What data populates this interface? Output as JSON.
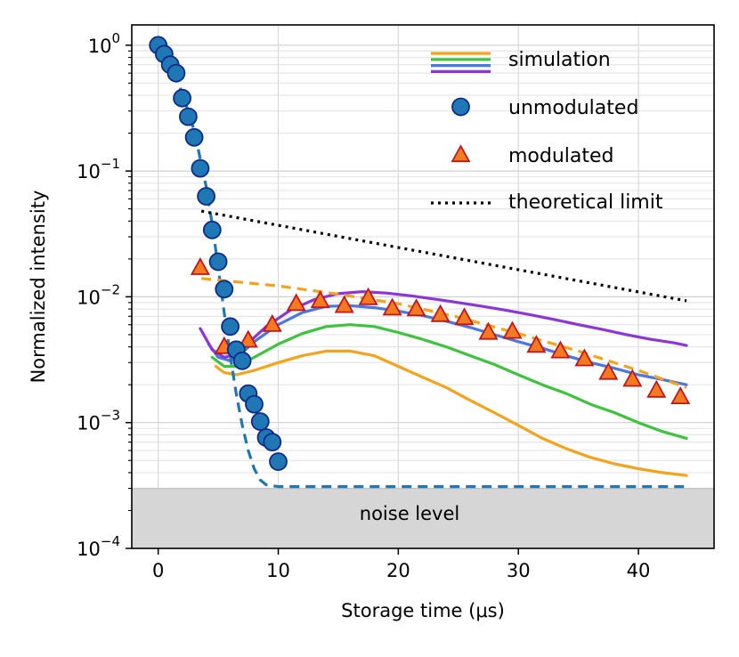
{
  "chart_data": {
    "type": "line",
    "title": "",
    "xlabel": "Storage time (μs)",
    "ylabel": "Normalized intensity",
    "xlim": [
      -2.2,
      46.3
    ],
    "ylim": [
      0.0001,
      1.45
    ],
    "yscale": "log",
    "grid": true,
    "legend_position": "top-right",
    "x_ticks": [
      {
        "value": 0,
        "label": "0"
      },
      {
        "value": 10,
        "label": "10"
      },
      {
        "value": 20,
        "label": "20"
      },
      {
        "value": 30,
        "label": "30"
      },
      {
        "value": 40,
        "label": "40"
      }
    ],
    "y_ticks": [
      {
        "value": 0.0001,
        "base": "10",
        "exp": "−4"
      },
      {
        "value": 0.001,
        "base": "10",
        "exp": "−3"
      },
      {
        "value": 0.01,
        "base": "10",
        "exp": "−2"
      },
      {
        "value": 0.1,
        "base": "10",
        "exp": "−1"
      },
      {
        "value": 1,
        "base": "10",
        "exp": "0"
      }
    ],
    "noise_level": {
      "value": 0.0003,
      "label": "noise level",
      "color": "#d6d6d6"
    },
    "legend": [
      {
        "kind": "simulation",
        "label": "simulation",
        "colors": [
          "#f5a31a",
          "#3cc43c",
          "#4a78e0",
          "#8c36d9"
        ]
      },
      {
        "kind": "unmodulated",
        "label": "unmodulated"
      },
      {
        "kind": "modulated",
        "label": "modulated"
      },
      {
        "kind": "limit",
        "label": "theoretical limit"
      }
    ],
    "series": [
      {
        "name": "unmodulated",
        "kind": "scatter",
        "color": "#1f77b4",
        "edge_color": "#0e2a8a",
        "x": [
          0,
          0.5,
          1.0,
          1.5,
          2.0,
          2.5,
          3.0,
          3.5,
          4.0,
          4.5,
          5.0,
          5.5,
          6.0,
          6.5,
          7.0,
          7.5,
          8.0,
          8.5,
          9.0,
          9.5,
          10.0
        ],
        "y": [
          1.0,
          0.85,
          0.7,
          0.6,
          0.38,
          0.27,
          0.185,
          0.105,
          0.063,
          0.034,
          0.019,
          0.0115,
          0.0058,
          0.0038,
          0.0031,
          0.0017,
          0.0014,
          0.00102,
          0.00076,
          0.0007,
          0.00049
        ]
      },
      {
        "name": "unmodulated fit",
        "kind": "dashed",
        "color": "#1f77b4",
        "x": [
          0,
          1,
          2,
          3,
          4,
          4.5,
          5,
          5.5,
          6,
          6.5,
          7,
          7.5,
          8,
          8.5,
          9,
          10,
          15,
          20,
          25,
          30,
          35,
          40,
          44
        ],
        "y": [
          1.0,
          0.68,
          0.42,
          0.21,
          0.075,
          0.038,
          0.017,
          0.0075,
          0.0034,
          0.0017,
          0.00095,
          0.0006,
          0.00043,
          0.00035,
          0.00032,
          0.00031,
          0.00031,
          0.00031,
          0.00031,
          0.00031,
          0.00031,
          0.00031,
          0.00031
        ]
      },
      {
        "name": "modulated",
        "kind": "triangles",
        "color": "#f47a20",
        "edge_color": "#c0161c",
        "x": [
          3.5,
          5.5,
          7.5,
          9.5,
          11.5,
          13.5,
          15.5,
          17.5,
          19.5,
          21.5,
          23.5,
          25.5,
          27.5,
          29.5,
          31.5,
          33.5,
          35.5,
          37.5,
          39.5,
          41.5,
          43.5
        ],
        "y": [
          0.017,
          0.004,
          0.0045,
          0.006,
          0.0088,
          0.0093,
          0.0085,
          0.0098,
          0.0081,
          0.008,
          0.0072,
          0.0068,
          0.0052,
          0.0053,
          0.0041,
          0.0037,
          0.0032,
          0.0025,
          0.0022,
          0.0018,
          0.0016
        ]
      },
      {
        "name": "modulated fit",
        "kind": "dashed",
        "color": "#f5a31a",
        "x": [
          3.6,
          6,
          10,
          15,
          20,
          25,
          30,
          35,
          40,
          44
        ],
        "y": [
          0.014,
          0.0133,
          0.0122,
          0.0105,
          0.0088,
          0.0069,
          0.0051,
          0.0037,
          0.0026,
          0.0019
        ]
      },
      {
        "name": "theoretical limit",
        "kind": "dotted",
        "color": "#000000",
        "x": [
          3.6,
          44
        ],
        "y": [
          0.048,
          0.0093
        ]
      },
      {
        "name": "simulation 1",
        "kind": "line",
        "color": "#f5a31a",
        "x": [
          4.8,
          5.5,
          6.5,
          8,
          10,
          12,
          14,
          16,
          18,
          20,
          22,
          24,
          26,
          28,
          30,
          32,
          34,
          36,
          38,
          40,
          42,
          44
        ],
        "y": [
          0.0028,
          0.0025,
          0.0024,
          0.0026,
          0.003,
          0.0034,
          0.0037,
          0.0037,
          0.0034,
          0.0028,
          0.0023,
          0.0019,
          0.0015,
          0.0012,
          0.00095,
          0.00075,
          0.00062,
          0.00053,
          0.00047,
          0.00043,
          0.0004,
          0.00038
        ]
      },
      {
        "name": "simulation 2",
        "kind": "line",
        "color": "#3cc43c",
        "x": [
          4.5,
          5.5,
          6.5,
          8,
          10,
          12,
          14,
          16,
          18,
          20,
          22,
          24,
          26,
          28,
          30,
          32,
          34,
          36,
          38,
          40,
          42,
          44
        ],
        "y": [
          0.0033,
          0.0028,
          0.0028,
          0.0033,
          0.0042,
          0.0051,
          0.0058,
          0.006,
          0.0058,
          0.0052,
          0.0046,
          0.004,
          0.0034,
          0.0029,
          0.0024,
          0.002,
          0.0017,
          0.0014,
          0.0012,
          0.001,
          0.00085,
          0.00075
        ]
      },
      {
        "name": "simulation 3",
        "kind": "line",
        "color": "#4a78e0",
        "x": [
          4.2,
          5,
          6,
          7,
          8,
          10,
          12,
          14,
          16,
          18,
          20,
          22,
          24,
          26,
          28,
          30,
          32,
          34,
          36,
          38,
          40,
          42,
          44
        ],
        "y": [
          0.0042,
          0.0033,
          0.0031,
          0.0036,
          0.0044,
          0.006,
          0.0075,
          0.0084,
          0.0085,
          0.0082,
          0.0077,
          0.0071,
          0.0064,
          0.0057,
          0.005,
          0.0044,
          0.0039,
          0.0034,
          0.003,
          0.0027,
          0.0024,
          0.0022,
          0.002
        ]
      },
      {
        "name": "simulation 4",
        "kind": "line",
        "color": "#8c36d9",
        "x": [
          3.5,
          4.5,
          5.5,
          6.5,
          7.5,
          9,
          11,
          13,
          15,
          17,
          19,
          21,
          23,
          25,
          27,
          29,
          31,
          33,
          35,
          37,
          39,
          41,
          43,
          44
        ],
        "y": [
          0.0056,
          0.0038,
          0.0033,
          0.0035,
          0.0043,
          0.0058,
          0.0078,
          0.0095,
          0.0106,
          0.011,
          0.0107,
          0.0102,
          0.0096,
          0.009,
          0.0084,
          0.0078,
          0.0072,
          0.0066,
          0.006,
          0.0055,
          0.005,
          0.0046,
          0.0043,
          0.0041
        ]
      }
    ]
  }
}
